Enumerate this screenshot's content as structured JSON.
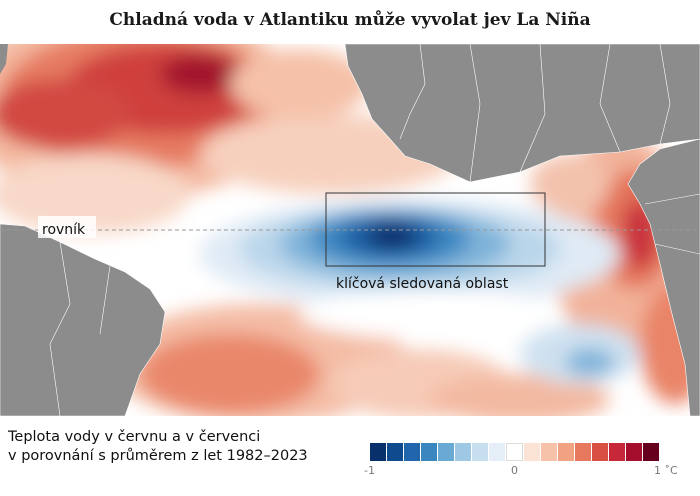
{
  "title": "Chladná voda v Atlantiku může vyvolat jev La Niña",
  "map": {
    "equator_label": "rovník",
    "region_label": "klíčová sledovaná oblast",
    "colors": {
      "land": "#8c8c8c",
      "equator_line": "#999999",
      "box": "#333333"
    }
  },
  "caption": {
    "line1": "Teplota vody v červnu a v červenci",
    "line2": "v porovnání s průměrem z let 1982–2023"
  },
  "legend": {
    "min_label": "-1",
    "zero_label": "0",
    "max_label": "1 ˚C",
    "colors": [
      "#08306b",
      "#0f4a8f",
      "#2166ac",
      "#3a87c0",
      "#6aa9d4",
      "#9ec8e4",
      "#c7deef",
      "#e6eff7",
      "#ffffff",
      "#fbe3d6",
      "#f6c3aa",
      "#f0a283",
      "#e6785e",
      "#d94f43",
      "#c6283a",
      "#a50f2d",
      "#67001f"
    ]
  }
}
